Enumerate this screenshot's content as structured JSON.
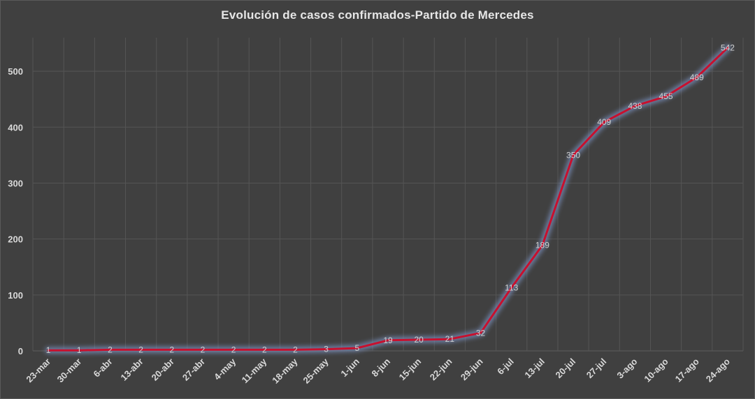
{
  "chart_data": {
    "type": "line",
    "title": "Evolución  de casos confirmados-Partido  de Mercedes",
    "xlabel": "",
    "ylabel": "",
    "categories": [
      "23-mar",
      "30-mar",
      "6-abr",
      "13-abr",
      "20-abr",
      "27-abr",
      "4-may",
      "11-may",
      "18-may",
      "25-may",
      "1-jun",
      "8-jun",
      "15-jun",
      "22-jun",
      "29-jun",
      "6-jul",
      "13-jul",
      "20-jul",
      "27-jul",
      "3-ago",
      "10-ago",
      "17-ago",
      "24-ago"
    ],
    "series": [
      {
        "values": [
          1,
          1,
          2,
          2,
          2,
          2,
          2,
          2,
          2,
          3,
          5,
          19,
          20,
          21,
          32,
          113,
          189,
          350,
          409,
          438,
          455,
          489,
          542
        ]
      }
    ],
    "ylim": [
      0,
      560
    ],
    "yticks": [
      0,
      100,
      200,
      300,
      400,
      500
    ],
    "grid": true,
    "legend": "none",
    "colors": {
      "background": "#404040",
      "line": "#c8102e",
      "glow": "#7f96c8",
      "grid": "#555555",
      "text": "#d9d9d9"
    }
  }
}
